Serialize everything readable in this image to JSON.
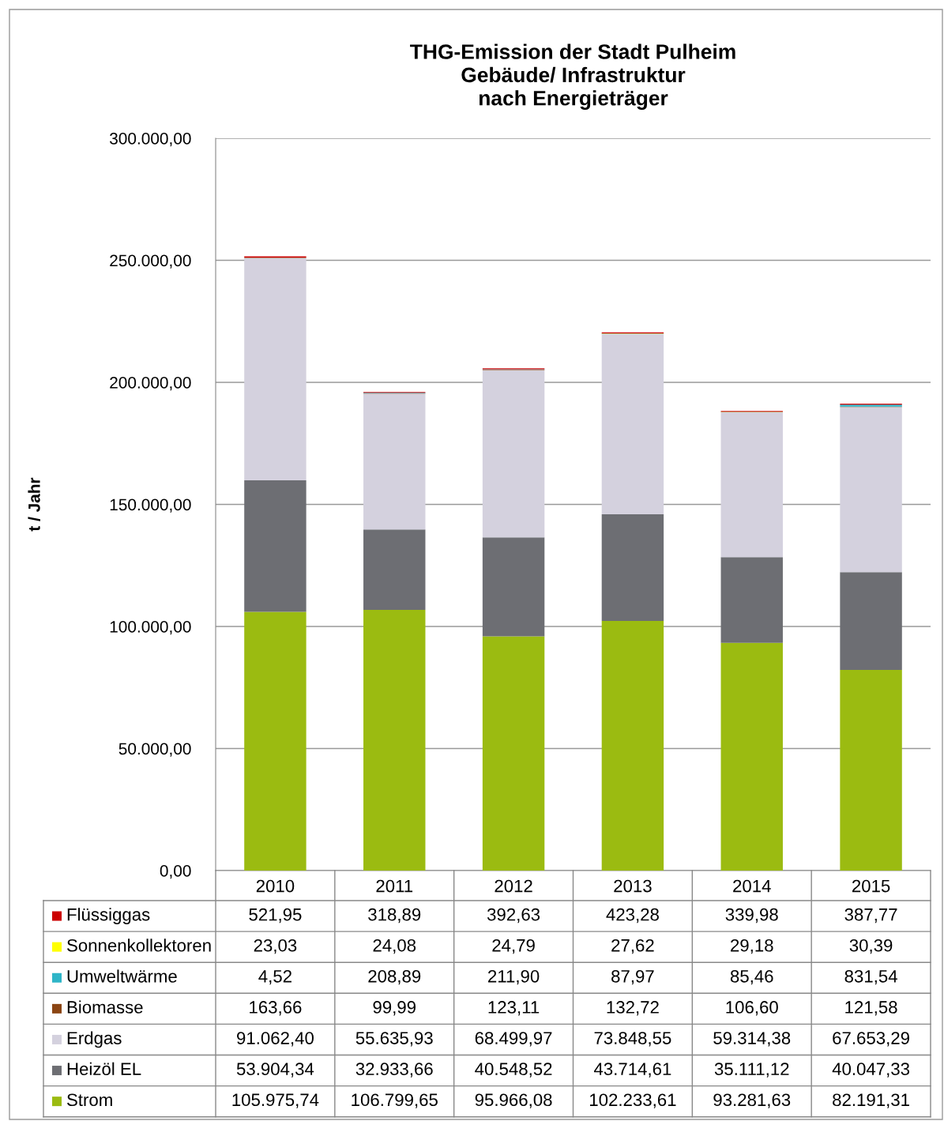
{
  "chart_data": {
    "type": "bar",
    "title": "THG-Emission der Stadt Pulheim\nGebäude/ Infrastruktur\nnach Energieträger",
    "ylabel": "t / Jahr",
    "categories": [
      "2010",
      "2011",
      "2012",
      "2013",
      "2014",
      "2015"
    ],
    "stacked": true,
    "legend": "bottom",
    "grid": "y",
    "ylim": [
      0,
      300000
    ],
    "yticks": [
      {
        "value": 0,
        "label": "0,00"
      },
      {
        "value": 50000,
        "label": "50.000,00"
      },
      {
        "value": 100000,
        "label": "100.000,00"
      },
      {
        "value": 150000,
        "label": "150.000,00"
      },
      {
        "value": 200000,
        "label": "200.000,00"
      },
      {
        "value": 250000,
        "label": "250.000,00"
      },
      {
        "value": 300000,
        "label": "300.000,00"
      }
    ],
    "series": [
      {
        "name": "Strom",
        "color": "#9bbb11",
        "values": [
          105975.74,
          106799.65,
          95966.08,
          102233.61,
          93281.63,
          82191.31
        ],
        "value_labels": [
          "105.975,74",
          "106.799,65",
          "95.966,08",
          "102.233,61",
          "93.281,63",
          "82.191,31"
        ]
      },
      {
        "name": "Heizöl EL",
        "color": "#6d6e73",
        "values": [
          53904.34,
          32933.66,
          40548.52,
          43714.61,
          35111.12,
          40047.33
        ],
        "value_labels": [
          "53.904,34",
          "32.933,66",
          "40.548,52",
          "43.714,61",
          "35.111,12",
          "40.047,33"
        ]
      },
      {
        "name": "Erdgas",
        "color": "#d4d1de",
        "values": [
          91062.4,
          55635.93,
          68499.97,
          73848.55,
          59314.38,
          67653.29
        ],
        "value_labels": [
          "91.062,40",
          "55.635,93",
          "68.499,97",
          "73.848,55",
          "59.314,38",
          "67.653,29"
        ]
      },
      {
        "name": "Biomasse",
        "color": "#8b4513",
        "values": [
          163.66,
          99.99,
          123.11,
          132.72,
          106.6,
          121.58
        ],
        "value_labels": [
          "163,66",
          "99,99",
          "123,11",
          "132,72",
          "106,60",
          "121,58"
        ]
      },
      {
        "name": "Umweltwärme",
        "color": "#2eb5c8",
        "values": [
          4.52,
          208.89,
          211.9,
          87.97,
          85.46,
          831.54
        ],
        "value_labels": [
          "4,52",
          "208,89",
          "211,90",
          "87,97",
          "85,46",
          "831,54"
        ]
      },
      {
        "name": "Sonnenkollektoren",
        "color": "#ffff00",
        "values": [
          23.03,
          24.08,
          24.79,
          27.62,
          29.18,
          30.39
        ],
        "value_labels": [
          "23,03",
          "24,08",
          "24,79",
          "27,62",
          "29,18",
          "30,39"
        ]
      },
      {
        "name": "Flüssiggas",
        "color": "#cc0000",
        "values": [
          521.95,
          318.89,
          392.63,
          423.28,
          339.98,
          387.77
        ],
        "value_labels": [
          "521,95",
          "318,89",
          "392,63",
          "423,28",
          "339,98",
          "387,77"
        ]
      }
    ]
  }
}
